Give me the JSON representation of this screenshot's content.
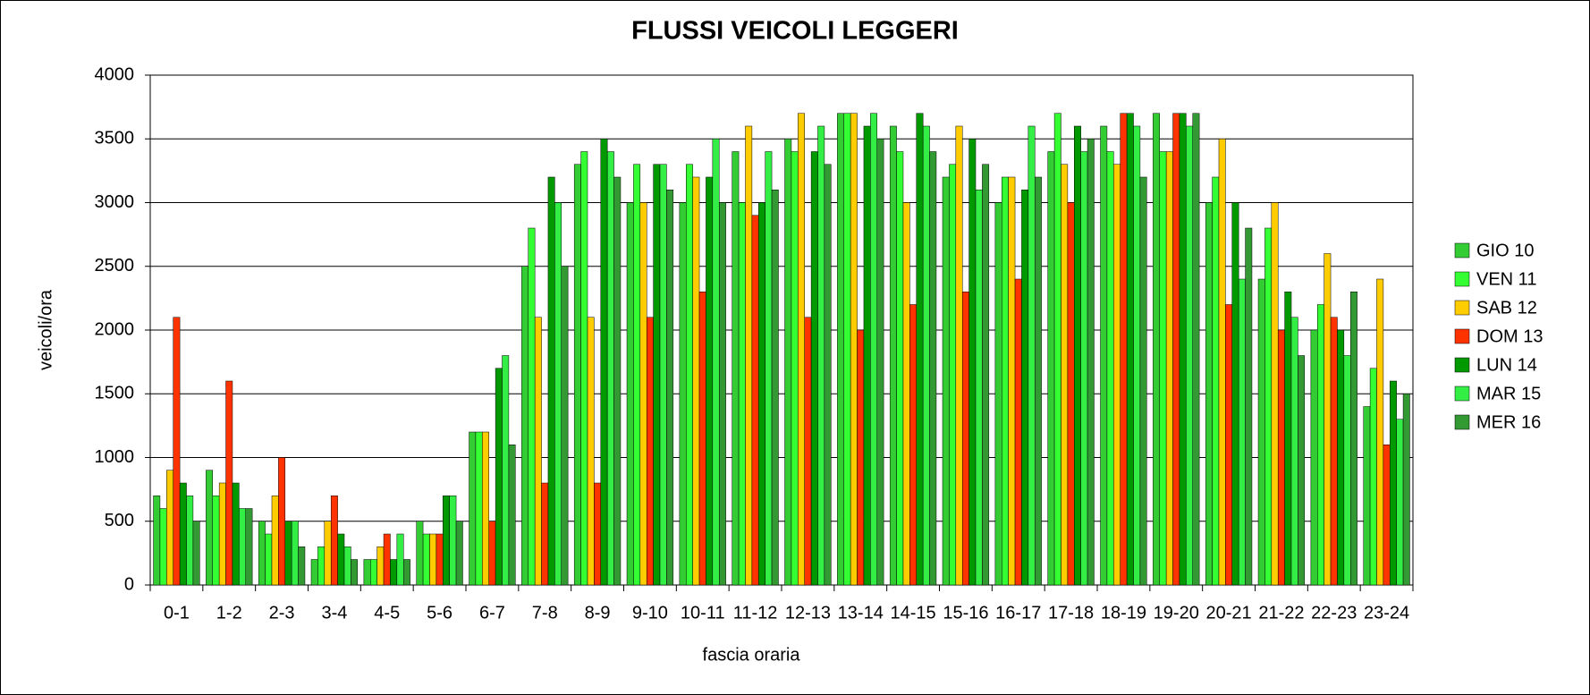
{
  "chart_data": {
    "type": "bar",
    "title": "FLUSSI VEICOLI LEGGERI",
    "x_label": "fascia oraria",
    "y_label": "veicoli/ora",
    "categories": [
      "0-1",
      "1-2",
      "2-3",
      "3-4",
      "4-5",
      "5-6",
      "6-7",
      "7-8",
      "8-9",
      "9-10",
      "10-11",
      "11-12",
      "12-13",
      "13-14",
      "14-15",
      "15-16",
      "16-17",
      "17-18",
      "18-19",
      "19-20",
      "20-21",
      "21-22",
      "22-23",
      "23-24"
    ],
    "series": [
      {
        "name": "GIO 10",
        "color": "#33cc33",
        "values": [
          700,
          900,
          500,
          200,
          200,
          500,
          1200,
          2500,
          3300,
          3000,
          3000,
          3400,
          3500,
          3700,
          3600,
          3200,
          3000,
          3400,
          3600,
          3700,
          3000,
          2400,
          2000,
          1400
        ]
      },
      {
        "name": "VEN 11",
        "color": "#33ff33",
        "values": [
          600,
          700,
          400,
          300,
          200,
          400,
          1200,
          2800,
          3400,
          3300,
          3300,
          3000,
          3400,
          3700,
          3400,
          3300,
          3200,
          3700,
          3400,
          3400,
          3200,
          2800,
          2200,
          1700
        ]
      },
      {
        "name": "SAB 12",
        "color": "#ffcc00",
        "values": [
          900,
          800,
          700,
          500,
          300,
          400,
          1200,
          2100,
          2100,
          3000,
          3200,
          3600,
          3700,
          3700,
          3000,
          3600,
          3200,
          3300,
          3300,
          3400,
          3500,
          3000,
          2600,
          2400
        ]
      },
      {
        "name": "DOM 13",
        "color": "#ff3300",
        "values": [
          2100,
          1600,
          1000,
          700,
          400,
          400,
          500,
          800,
          800,
          2100,
          2300,
          2900,
          2100,
          2000,
          2200,
          2300,
          2400,
          3000,
          3700,
          3700,
          2200,
          2000,
          2100,
          1100
        ]
      },
      {
        "name": "LUN 14",
        "color": "#009900",
        "values": [
          800,
          800,
          500,
          400,
          200,
          700,
          1700,
          3200,
          3500,
          3300,
          3200,
          3000,
          3400,
          3600,
          3700,
          3500,
          3100,
          3600,
          3700,
          3700,
          3000,
          2300,
          2000,
          1600
        ]
      },
      {
        "name": "MAR 15",
        "color": "#33ee44",
        "values": [
          700,
          600,
          500,
          300,
          400,
          700,
          1800,
          3000,
          3400,
          3300,
          3500,
          3400,
          3600,
          3700,
          3600,
          3100,
          3600,
          3400,
          3600,
          3600,
          2400,
          2100,
          1800,
          1300
        ]
      },
      {
        "name": "MER 16",
        "color": "#339933",
        "values": [
          500,
          600,
          300,
          200,
          200,
          500,
          1100,
          2500,
          3200,
          3100,
          3000,
          3100,
          3300,
          3500,
          3400,
          3300,
          3200,
          3500,
          3200,
          3700,
          2800,
          1800,
          2300,
          1500
        ]
      }
    ],
    "ylim": [
      0,
      4000
    ],
    "yticks": [
      0,
      500,
      1000,
      1500,
      2000,
      2500,
      3000,
      3500,
      4000
    ],
    "grid": true,
    "legend": "right"
  }
}
